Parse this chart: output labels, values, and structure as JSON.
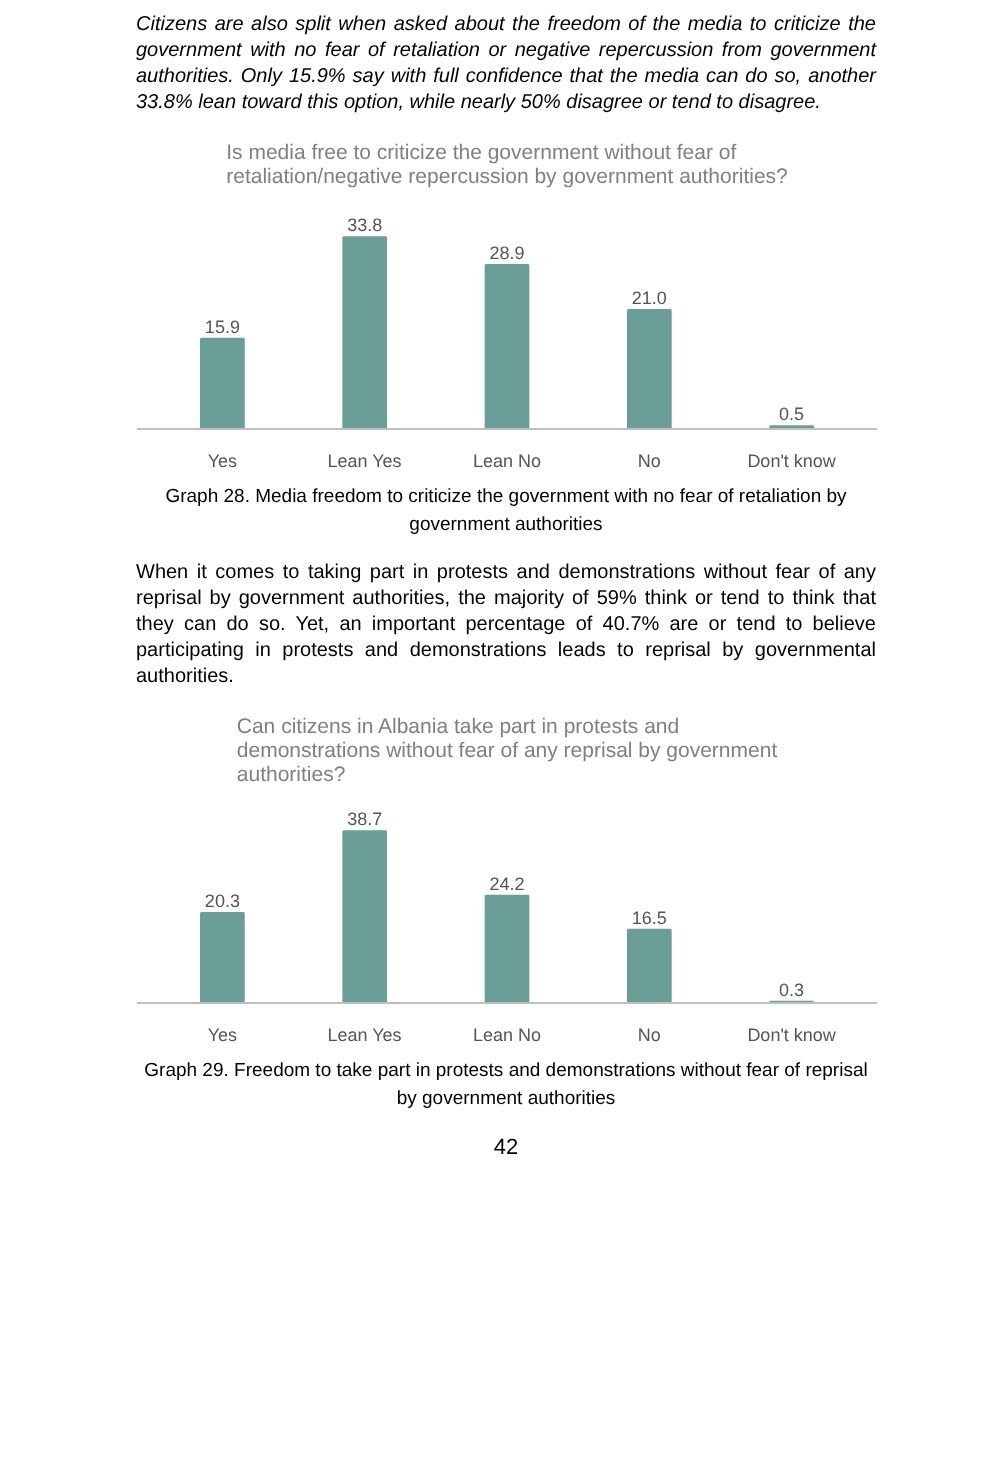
{
  "chart_data": [
    {
      "type": "bar",
      "title": "Is media free to criticize the government without fear of retaliation/negative repercussion by government authorities?",
      "categories": [
        "Yes",
        "Lean Yes",
        "Lean No",
        "No",
        "Don't know"
      ],
      "values": [
        15.9,
        33.8,
        28.9,
        21.0,
        0.5
      ],
      "value_labels": [
        "15.9",
        "33.8",
        "28.9",
        "21.0",
        "0.5"
      ],
      "color": "#6a9e97",
      "annotations": [
        "Citizens are also split when asked about the freedom of the media to criticize the government with no fear of retaliation or negative repercussion from government authorities. Only 15.9% say with full confidence that the media can do so, another 33.8% lean toward this option, while nearly 50% disagree or tend to disagree.",
        "Graph 28. Media freedom to criticize the government with no fear of retaliation by government authorities"
      ]
    },
    {
      "type": "bar",
      "title": "Can citizens in Albania take part in protests and demonstrations without fear of any reprisal by government authorities?",
      "categories": [
        "Yes",
        "Lean Yes",
        "Lean No",
        "No",
        "Don't know"
      ],
      "values": [
        20.3,
        38.7,
        24.2,
        16.5,
        0.3
      ],
      "value_labels": [
        "20.3",
        "38.7",
        "24.2",
        "16.5",
        "0.3"
      ],
      "color": "#6a9e97",
      "annotations": [
        "When it comes to taking part in protests and demonstrations without fear of any reprisal by government authorities, the majority of 59% think or tend to think that they can do so. Yet, an important percentage of 40.7% are or tend to believe participating in protests and demonstrations leads to reprisal by governmental authorities.",
        "Graph 29. Freedom to take part in protests and demonstrations without fear of reprisal by government authorities",
        "42"
      ]
    }
  ]
}
